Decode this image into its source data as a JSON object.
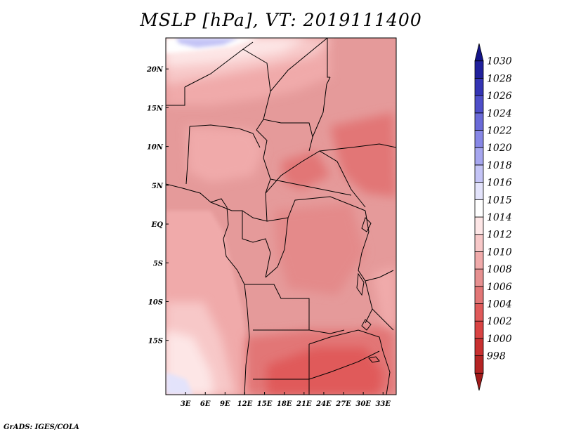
{
  "title": "MSLP [hPa], VT: 2019111400",
  "footer": "GrADS: IGES/COLA",
  "colors": {
    "background": "#ffffff",
    "land_default": "#e59a9a",
    "border": "#000000"
  },
  "map": {
    "lon_range": [
      0,
      35
    ],
    "lat_range": [
      -22,
      24
    ],
    "lon_ticks": [
      {
        "lon": 3,
        "label": "3E"
      },
      {
        "lon": 6,
        "label": "6E"
      },
      {
        "lon": 9,
        "label": "9E"
      },
      {
        "lon": 12,
        "label": "12E"
      },
      {
        "lon": 15,
        "label": "15E"
      },
      {
        "lon": 18,
        "label": "18E"
      },
      {
        "lon": 21,
        "label": "21E"
      },
      {
        "lon": 24,
        "label": "24E"
      },
      {
        "lon": 27,
        "label": "27E"
      },
      {
        "lon": 30,
        "label": "30E"
      },
      {
        "lon": 33,
        "label": "33E"
      }
    ],
    "lat_ticks": [
      {
        "lat": 20,
        "label": "20N"
      },
      {
        "lat": 15,
        "label": "15N"
      },
      {
        "lat": 10,
        "label": "10N"
      },
      {
        "lat": 5,
        "label": "5N"
      },
      {
        "lat": 0,
        "label": "EQ"
      },
      {
        "lat": -5,
        "label": "5S"
      },
      {
        "lat": -10,
        "label": "10S"
      },
      {
        "lat": -15,
        "label": "15S"
      }
    ]
  },
  "colorbar": {
    "levels": [
      {
        "label": "",
        "color": "#a11a1a"
      },
      {
        "label": "998",
        "color": "#b52424"
      },
      {
        "label": "1000",
        "color": "#c83030"
      },
      {
        "label": "1002",
        "color": "#d94343"
      },
      {
        "label": "1004",
        "color": "#e05a5a"
      },
      {
        "label": "1006",
        "color": "#e27676"
      },
      {
        "label": "1008",
        "color": "#e69090"
      },
      {
        "label": "1010",
        "color": "#f0aaaa"
      },
      {
        "label": "1012",
        "color": "#f7c8c8"
      },
      {
        "label": "1014",
        "color": "#fde6e6"
      },
      {
        "label": "1015",
        "color": "#ffffff"
      },
      {
        "label": "1016",
        "color": "#e3e3fb"
      },
      {
        "label": "1018",
        "color": "#c4c4f6"
      },
      {
        "label": "1020",
        "color": "#a6a6ef"
      },
      {
        "label": "1022",
        "color": "#8787e6"
      },
      {
        "label": "1024",
        "color": "#6a6ad8"
      },
      {
        "label": "1026",
        "color": "#4e4ec9"
      },
      {
        "label": "1028",
        "color": "#3434b4"
      },
      {
        "label": "1030",
        "color": "#20209c"
      },
      {
        "label": "",
        "color": "#141488"
      }
    ]
  }
}
